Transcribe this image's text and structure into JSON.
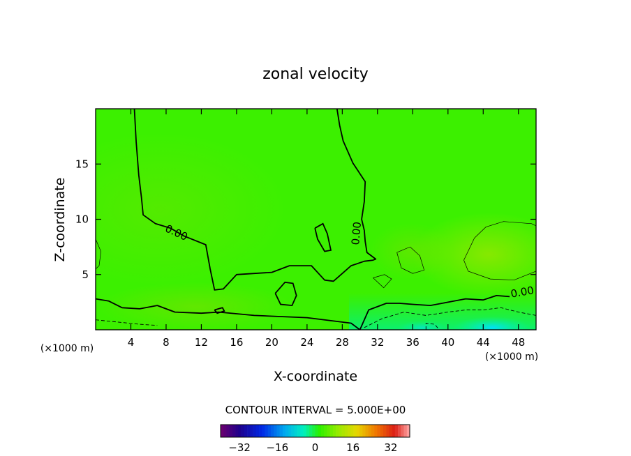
{
  "chart_data": {
    "type": "heatmap",
    "title": "zonal velocity",
    "xlabel": "X-coordinate",
    "ylabel": "Z-coordinate",
    "x_unit": "(×1000 m)",
    "z_unit": "(×1000 m)",
    "xlim": [
      0,
      50
    ],
    "ylim": [
      0,
      20
    ],
    "x_ticks": [
      4,
      8,
      12,
      16,
      20,
      24,
      28,
      32,
      36,
      40,
      44,
      48
    ],
    "y_ticks": [
      5,
      10,
      15
    ],
    "contour_interval_text": "CONTOUR INTERVAL = 5.000E+00",
    "contour_interval": 5.0,
    "contour_labels": [
      {
        "text": "0.00",
        "x": 9,
        "z": 8.5
      },
      {
        "text": "0.00",
        "x": 30,
        "z": 8.7
      },
      {
        "text": "0.00",
        "x": 48.5,
        "z": 3.1
      }
    ],
    "colorbar": {
      "range": [
        -40,
        40
      ],
      "tick_values": [
        -32,
        -16,
        0,
        16,
        32
      ],
      "tick_labels": [
        "−32",
        "−16",
        "0",
        "16",
        "32"
      ]
    },
    "zero_contour_main": [
      [
        4.4,
        20
      ],
      [
        4.6,
        17
      ],
      [
        4.9,
        14
      ],
      [
        5.2,
        12
      ],
      [
        5.4,
        10.4
      ],
      [
        6.8,
        9.6
      ],
      [
        8.5,
        9.2
      ],
      [
        10,
        8.5
      ],
      [
        12.5,
        7.7
      ],
      [
        13,
        5.5
      ],
      [
        13.5,
        3.6
      ],
      [
        14.5,
        3.7
      ],
      [
        16,
        5.0
      ],
      [
        18,
        5.1
      ],
      [
        20,
        5.2
      ],
      [
        22,
        5.8
      ],
      [
        24.5,
        5.8
      ],
      [
        26,
        4.5
      ],
      [
        27,
        4.4
      ],
      [
        28,
        5.1
      ],
      [
        29,
        5.8
      ],
      [
        30.5,
        6.2
      ],
      [
        31.5,
        6.3
      ],
      [
        31.8,
        6.4
      ],
      [
        30.8,
        7.0
      ],
      [
        30.6,
        8.0
      ],
      [
        30.5,
        9.0
      ],
      [
        30.2,
        10.0
      ],
      [
        30.5,
        11.6
      ],
      [
        30.6,
        13.4
      ],
      [
        29.2,
        15.1
      ],
      [
        28.1,
        17.1
      ],
      [
        27.7,
        18.5
      ],
      [
        27.4,
        20
      ]
    ],
    "zero_contour_lower": [
      [
        0,
        2.8
      ],
      [
        1.5,
        2.6
      ],
      [
        3,
        2.0
      ],
      [
        5,
        1.9
      ],
      [
        7,
        2.2
      ],
      [
        9,
        1.6
      ],
      [
        12,
        1.5
      ],
      [
        14,
        1.6
      ],
      [
        18,
        1.3
      ],
      [
        24,
        1.1
      ],
      [
        29,
        0.6
      ],
      [
        30,
        0
      ],
      [
        31,
        1.8
      ],
      [
        33,
        2.4
      ],
      [
        34.5,
        2.4
      ],
      [
        36,
        2.3
      ],
      [
        38,
        2.2
      ],
      [
        40,
        2.5
      ],
      [
        42,
        2.8
      ],
      [
        44,
        2.7
      ],
      [
        45.5,
        3.1
      ],
      [
        47,
        3.0
      ]
    ],
    "zero_contour_islands": [
      [
        [
          24.9,
          9.2
        ],
        [
          25.8,
          9.6
        ],
        [
          26.3,
          8.7
        ],
        [
          26.7,
          7.2
        ],
        [
          26.0,
          7.1
        ],
        [
          25.2,
          8.2
        ],
        [
          24.9,
          9.2
        ]
      ],
      [
        [
          20.4,
          3.3
        ],
        [
          21.5,
          4.3
        ],
        [
          22.4,
          4.2
        ],
        [
          22.8,
          3.1
        ],
        [
          22.3,
          2.2
        ],
        [
          21.0,
          2.3
        ],
        [
          20.4,
          3.3
        ]
      ],
      [
        [
          13.5,
          1.8
        ],
        [
          14.4,
          2.0
        ],
        [
          14.6,
          1.7
        ],
        [
          13.8,
          1.5
        ],
        [
          13.5,
          1.8
        ]
      ]
    ],
    "thin_contours": [
      [
        [
          34.2,
          7.0
        ],
        [
          35.7,
          7.5
        ],
        [
          36.8,
          6.7
        ],
        [
          37.3,
          5.4
        ],
        [
          36.0,
          5.1
        ],
        [
          34.7,
          5.6
        ],
        [
          34.2,
          7.0
        ]
      ],
      [
        [
          43.0,
          8.3
        ],
        [
          44.3,
          9.3
        ],
        [
          46.3,
          9.8
        ],
        [
          49.5,
          9.6
        ],
        [
          50,
          9.4
        ],
        [
          50,
          5.3
        ],
        [
          47.5,
          4.5
        ],
        [
          44.8,
          4.6
        ],
        [
          42.3,
          5.3
        ],
        [
          41.8,
          6.3
        ],
        [
          43.0,
          8.3
        ]
      ],
      [
        [
          0,
          8.2
        ],
        [
          0.6,
          7.1
        ],
        [
          0.4,
          5.8
        ],
        [
          0,
          5.5
        ]
      ],
      [
        [
          31.5,
          4.7
        ],
        [
          32.8,
          5.0
        ],
        [
          33.6,
          4.6
        ],
        [
          32.7,
          3.8
        ],
        [
          31.5,
          4.7
        ]
      ]
    ],
    "dashed_contours": [
      [
        [
          0,
          0.9
        ],
        [
          2.5,
          0.7
        ],
        [
          5,
          0.5
        ],
        [
          7,
          0.4
        ]
      ],
      [
        [
          30.5,
          0.2
        ],
        [
          32.5,
          1.0
        ],
        [
          35,
          1.6
        ],
        [
          37.5,
          1.3
        ],
        [
          40,
          1.6
        ],
        [
          42,
          1.8
        ],
        [
          44,
          1.8
        ],
        [
          46,
          2.0
        ],
        [
          48,
          1.6
        ],
        [
          50,
          1.3
        ]
      ],
      [
        [
          37.5,
          0
        ],
        [
          37.5,
          0.6
        ],
        [
          38.5,
          0.5
        ],
        [
          39,
          0
        ]
      ]
    ]
  }
}
